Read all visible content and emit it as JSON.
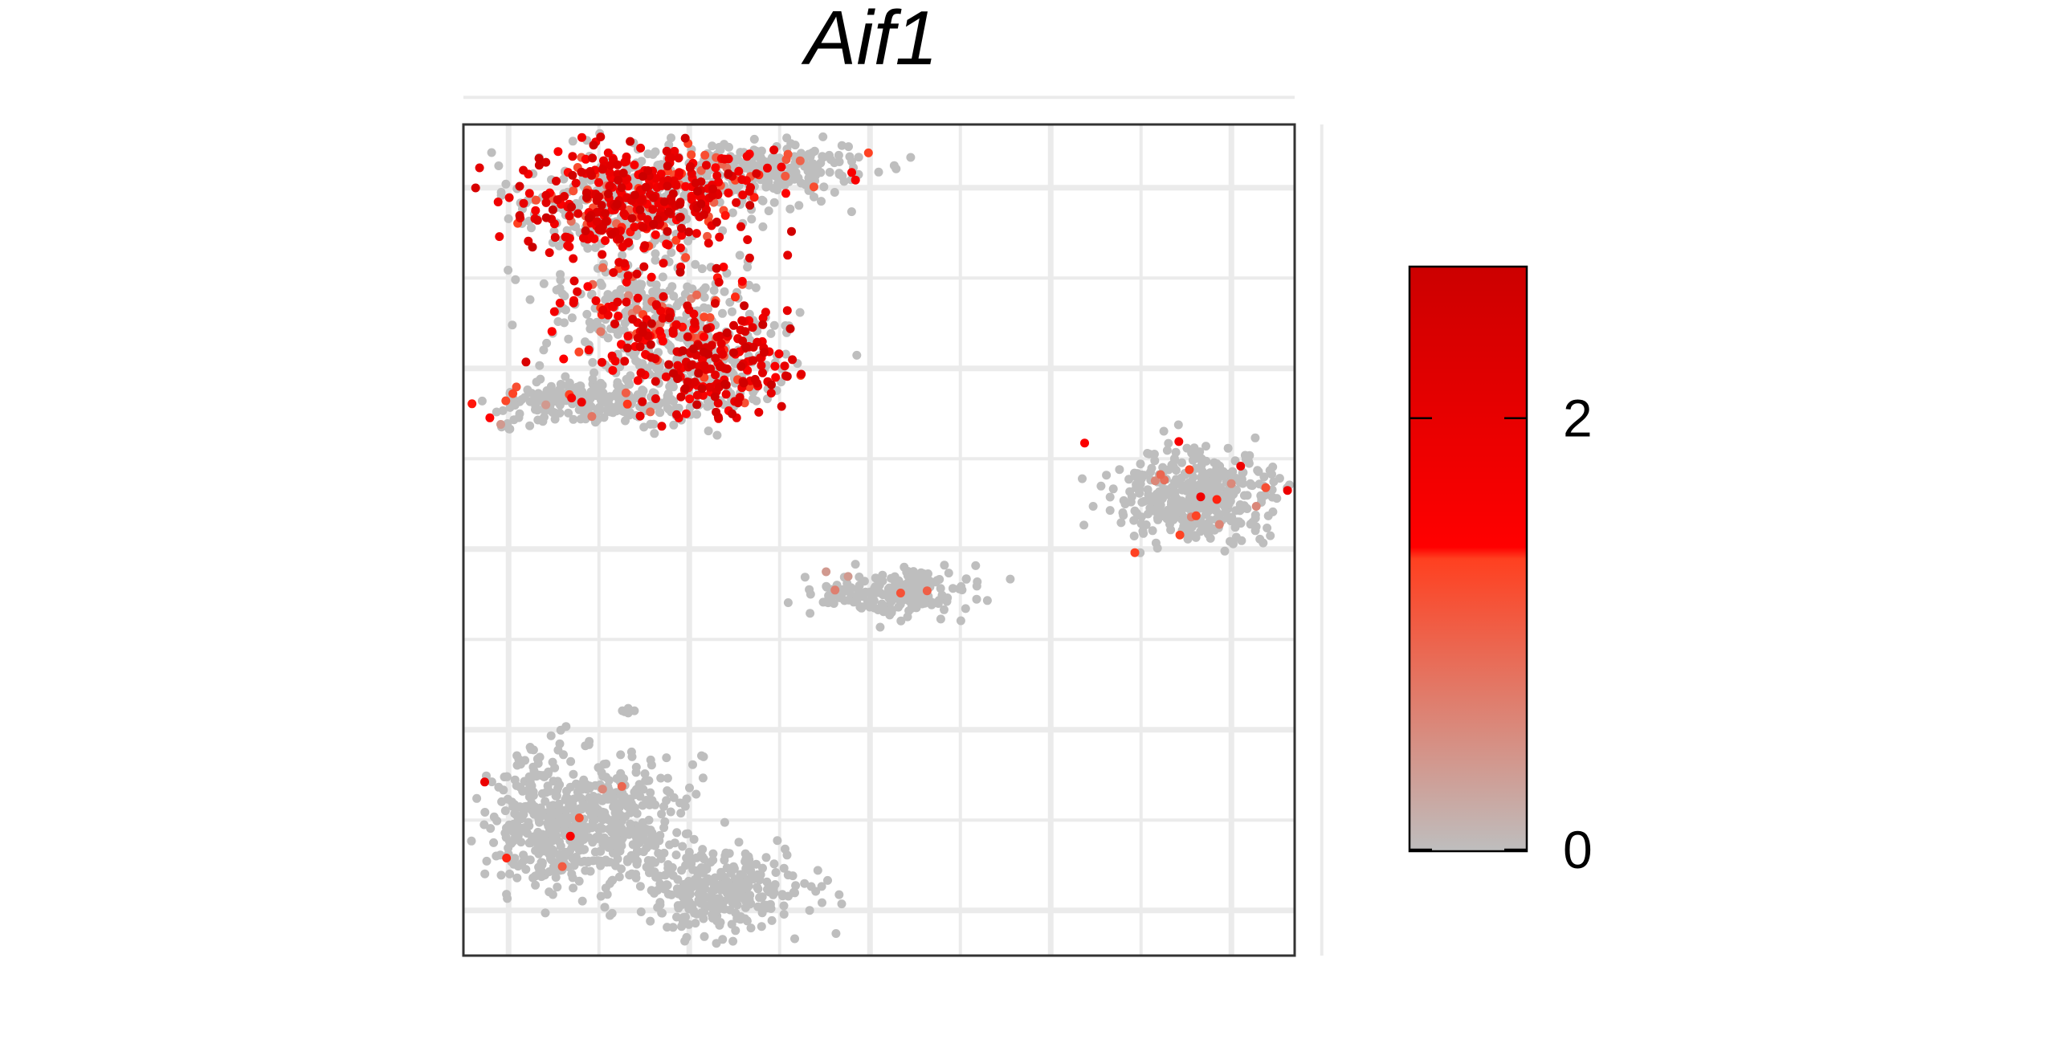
{
  "chart_data": {
    "type": "scatter",
    "title": "Aif1",
    "xlabel": "",
    "ylabel": "",
    "grid": true,
    "axis_ticks_shown": false,
    "legend_position": "right",
    "colors": {
      "low": "#bebebe",
      "mid": "#ff0000",
      "high": "#cc0000",
      "grid": "#ebebeb",
      "border": "#333333"
    },
    "colorbar": {
      "min": 0,
      "max": 2.7,
      "ticks": [
        0,
        2
      ],
      "tick_labels": [
        "0",
        "2"
      ]
    },
    "x_range": [
      0,
      9.2
    ],
    "y_range": [
      0,
      9.2
    ],
    "clusters": [
      {
        "id": "c1",
        "cx": 1.9,
        "cy": 8.35,
        "sx": 0.62,
        "sy": 0.3,
        "n": 700,
        "expr_frac": 0.55,
        "expr_mean": 1.9,
        "shape": "tri"
      },
      {
        "id": "c2",
        "cx": 3.35,
        "cy": 8.7,
        "sx": 0.55,
        "sy": 0.14,
        "n": 260,
        "expr_frac": 0.12,
        "expr_mean": 1.3
      },
      {
        "id": "c3",
        "cx": 2.0,
        "cy": 7.1,
        "sx": 0.55,
        "sy": 0.3,
        "n": 320,
        "expr_frac": 0.3,
        "expr_mean": 1.6
      },
      {
        "id": "c4",
        "cx": 2.75,
        "cy": 6.55,
        "sx": 0.45,
        "sy": 0.28,
        "n": 380,
        "expr_frac": 0.55,
        "expr_mean": 2.0
      },
      {
        "id": "c5",
        "cx": 1.45,
        "cy": 6.15,
        "sx": 0.6,
        "sy": 0.12,
        "n": 260,
        "expr_frac": 0.05,
        "expr_mean": 1.2
      },
      {
        "id": "c6",
        "cx": 8.1,
        "cy": 5.05,
        "sx": 0.45,
        "sy": 0.25,
        "n": 420,
        "expr_frac": 0.04,
        "expr_mean": 1.3
      },
      {
        "id": "c7",
        "cx": 4.8,
        "cy": 4.0,
        "sx": 0.45,
        "sy": 0.13,
        "n": 200,
        "expr_frac": 0.02,
        "expr_mean": 1.0
      },
      {
        "id": "c8",
        "cx": 0.85,
        "cy": 1.5,
        "sx": 0.28,
        "sy": 0.35,
        "n": 280,
        "expr_frac": 0.02,
        "expr_mean": 1.2
      },
      {
        "id": "c9",
        "cx": 1.7,
        "cy": 1.45,
        "sx": 0.38,
        "sy": 0.38,
        "n": 360,
        "expr_frac": 0.02,
        "expr_mean": 1.2
      },
      {
        "id": "c10",
        "cx": 2.85,
        "cy": 0.72,
        "sx": 0.45,
        "sy": 0.22,
        "n": 300,
        "expr_frac": 0.0,
        "expr_mean": 0.0
      },
      {
        "id": "c11",
        "cx": 0.45,
        "cy": 5.85,
        "sx": 0.04,
        "sy": 0.02,
        "n": 5,
        "expr_frac": 0.3,
        "expr_mean": 1.0
      },
      {
        "id": "c12",
        "cx": 1.75,
        "cy": 2.7,
        "sx": 0.04,
        "sy": 0.03,
        "n": 5,
        "expr_frac": 0.0,
        "expr_mean": 0.0
      }
    ]
  }
}
